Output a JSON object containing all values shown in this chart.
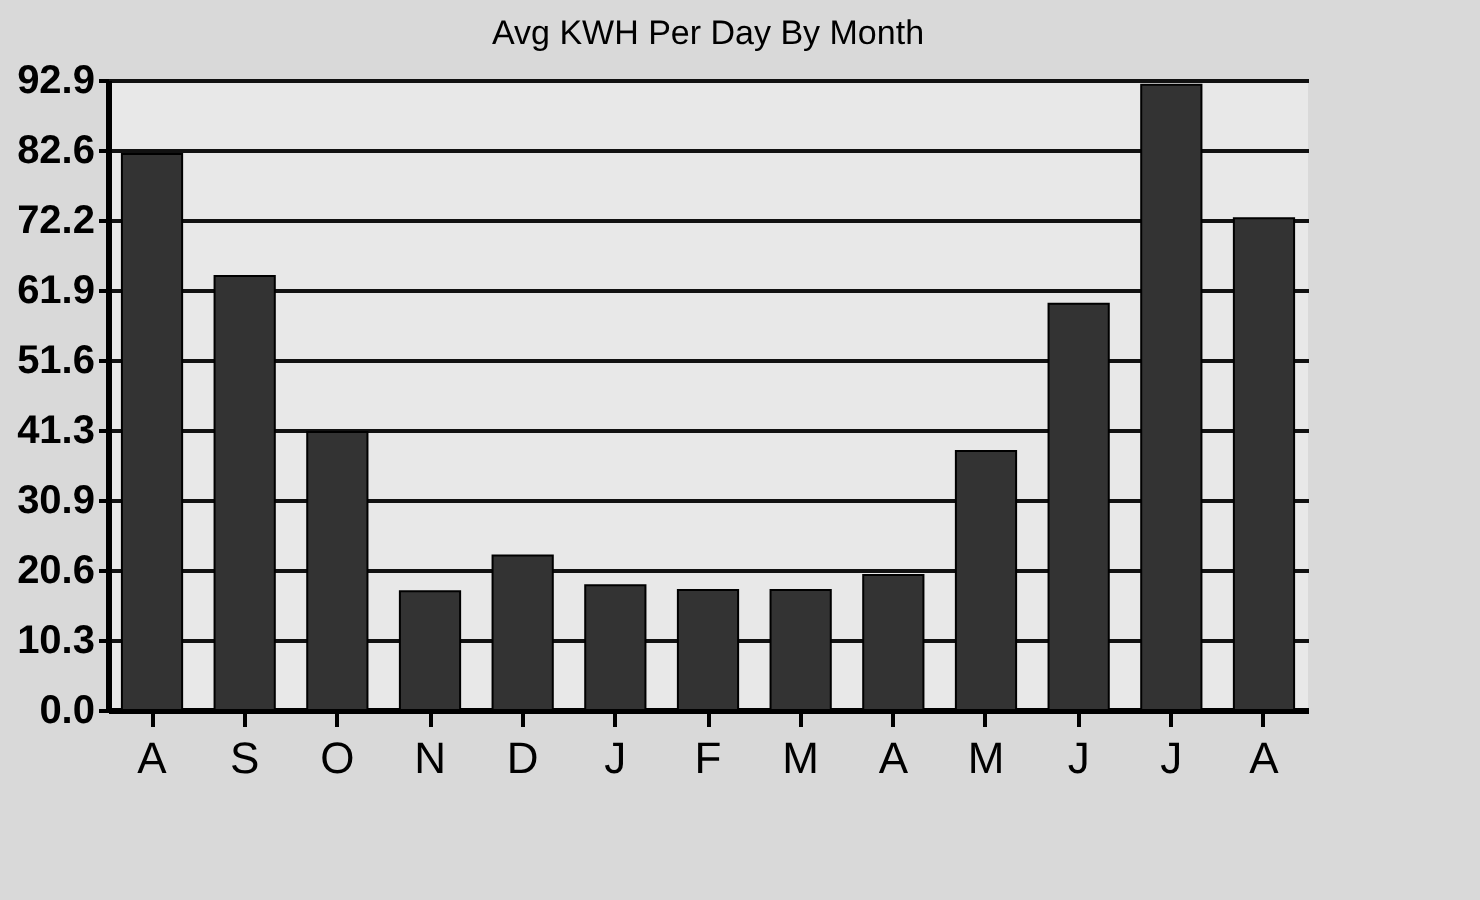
{
  "chart_data": {
    "type": "bar",
    "title": "Avg KWH Per Day By Month",
    "categories": [
      "A",
      "S",
      "O",
      "N",
      "D",
      "J",
      "F",
      "M",
      "A",
      "M",
      "J",
      "J",
      "A"
    ],
    "values": [
      82,
      64,
      41,
      17.5,
      22.8,
      18.4,
      17.7,
      17.7,
      19.9,
      38.2,
      59.9,
      92.2,
      72.5
    ],
    "color": "#333333",
    "ylim": [
      0,
      92.9
    ],
    "yticks": [
      {
        "value": 0,
        "label": "0.0"
      },
      10.3,
      20.6,
      30.9,
      41.3,
      51.6,
      61.9,
      72.2,
      82.6,
      92.9
    ],
    "grid": "y"
  }
}
